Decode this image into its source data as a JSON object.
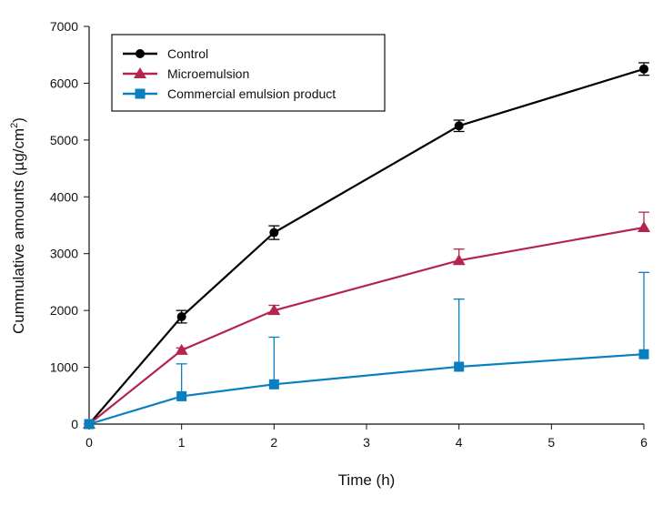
{
  "chart_data": {
    "type": "line",
    "title": "",
    "xlabel": "Time (h)",
    "ylabel": "Cummulative amounts (µg/cm",
    "ylabel_superscript": "2",
    "ylabel_suffix": ")",
    "xlim": [
      0,
      6
    ],
    "ylim": [
      0,
      7000
    ],
    "xticks": [
      0,
      1,
      2,
      3,
      4,
      5,
      6
    ],
    "yticks": [
      0,
      1000,
      2000,
      3000,
      4000,
      5000,
      6000,
      7000
    ],
    "grid": false,
    "legend_position": "top-left",
    "x": [
      0,
      1,
      2,
      4,
      6
    ],
    "series": [
      {
        "name": "Control",
        "color": "#000000",
        "marker": "circle",
        "values": [
          0,
          1890,
          3370,
          5250,
          6250
        ],
        "error": [
          0,
          110,
          120,
          100,
          110
        ],
        "error_style": "both"
      },
      {
        "name": "Microemulsion",
        "color": "#b5244f",
        "marker": "triangle",
        "values": [
          0,
          1300,
          2000,
          2880,
          3460
        ],
        "error": [
          0,
          40,
          90,
          200,
          270
        ],
        "error_style": "upper"
      },
      {
        "name": "Commercial emulsion product",
        "color": "#0a7fc0",
        "marker": "square",
        "values": [
          0,
          490,
          700,
          1010,
          1230
        ],
        "error": [
          0,
          570,
          830,
          1190,
          1440
        ],
        "error_style": "upper"
      }
    ]
  }
}
